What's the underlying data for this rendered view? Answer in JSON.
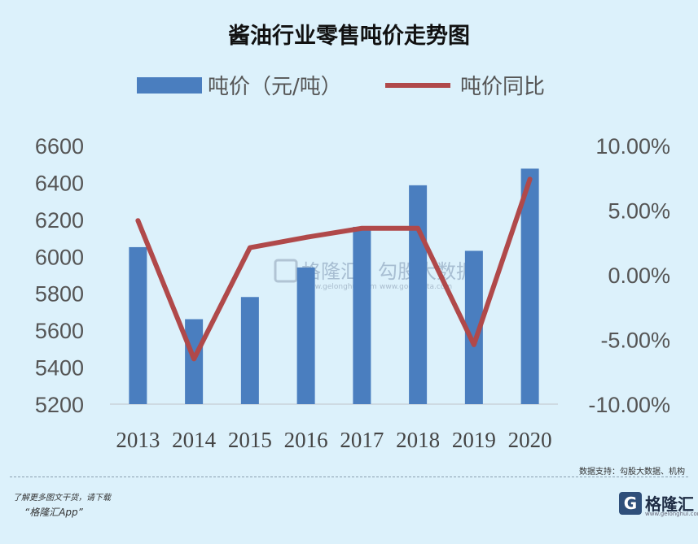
{
  "chart_data": {
    "type": "bar+line",
    "title": "酱油行业零售吨价走势图",
    "categories": [
      "2013",
      "2014",
      "2015",
      "2016",
      "2017",
      "2018",
      "2019",
      "2020"
    ],
    "series": [
      {
        "name": "吨价（元/吨）",
        "type": "bar",
        "axis": "left",
        "color": "#4a7ebf",
        "values": [
          6050,
          5660,
          5780,
          5940,
          6160,
          6385,
          6030,
          6475
        ]
      },
      {
        "name": "吨价同比",
        "type": "line",
        "axis": "right",
        "color": "#b0494a",
        "values": [
          4.2,
          -6.5,
          2.1,
          2.9,
          3.6,
          3.6,
          -5.4,
          7.4
        ]
      }
    ],
    "left_axis": {
      "ylim": [
        5200,
        6600
      ],
      "ticks": [
        "6600",
        "6400",
        "6200",
        "6000",
        "5800",
        "5600",
        "5400",
        "5200"
      ]
    },
    "right_axis": {
      "ylim": [
        -10,
        10
      ],
      "ticks": [
        "10.00%",
        "5.00%",
        "0.00%",
        "-5.00%",
        "-10.00%"
      ]
    },
    "legend_position": "top"
  },
  "watermark": {
    "logo_text": "格隆汇",
    "text": "勾股大数据",
    "url1": "www.gelonghui.com",
    "url2": "www.gogudata.com"
  },
  "footer": {
    "source": "数据支持：勾股大数据、机构",
    "promo_line1": "了解更多图文干货，请下载",
    "promo_line2": "“格隆汇App”",
    "logo_name": "格隆汇",
    "logo_url": "www.gelonghui.com"
  },
  "colors": {
    "background": "#dcf1fb",
    "bar": "#4a7ebf",
    "line": "#b0494a"
  }
}
